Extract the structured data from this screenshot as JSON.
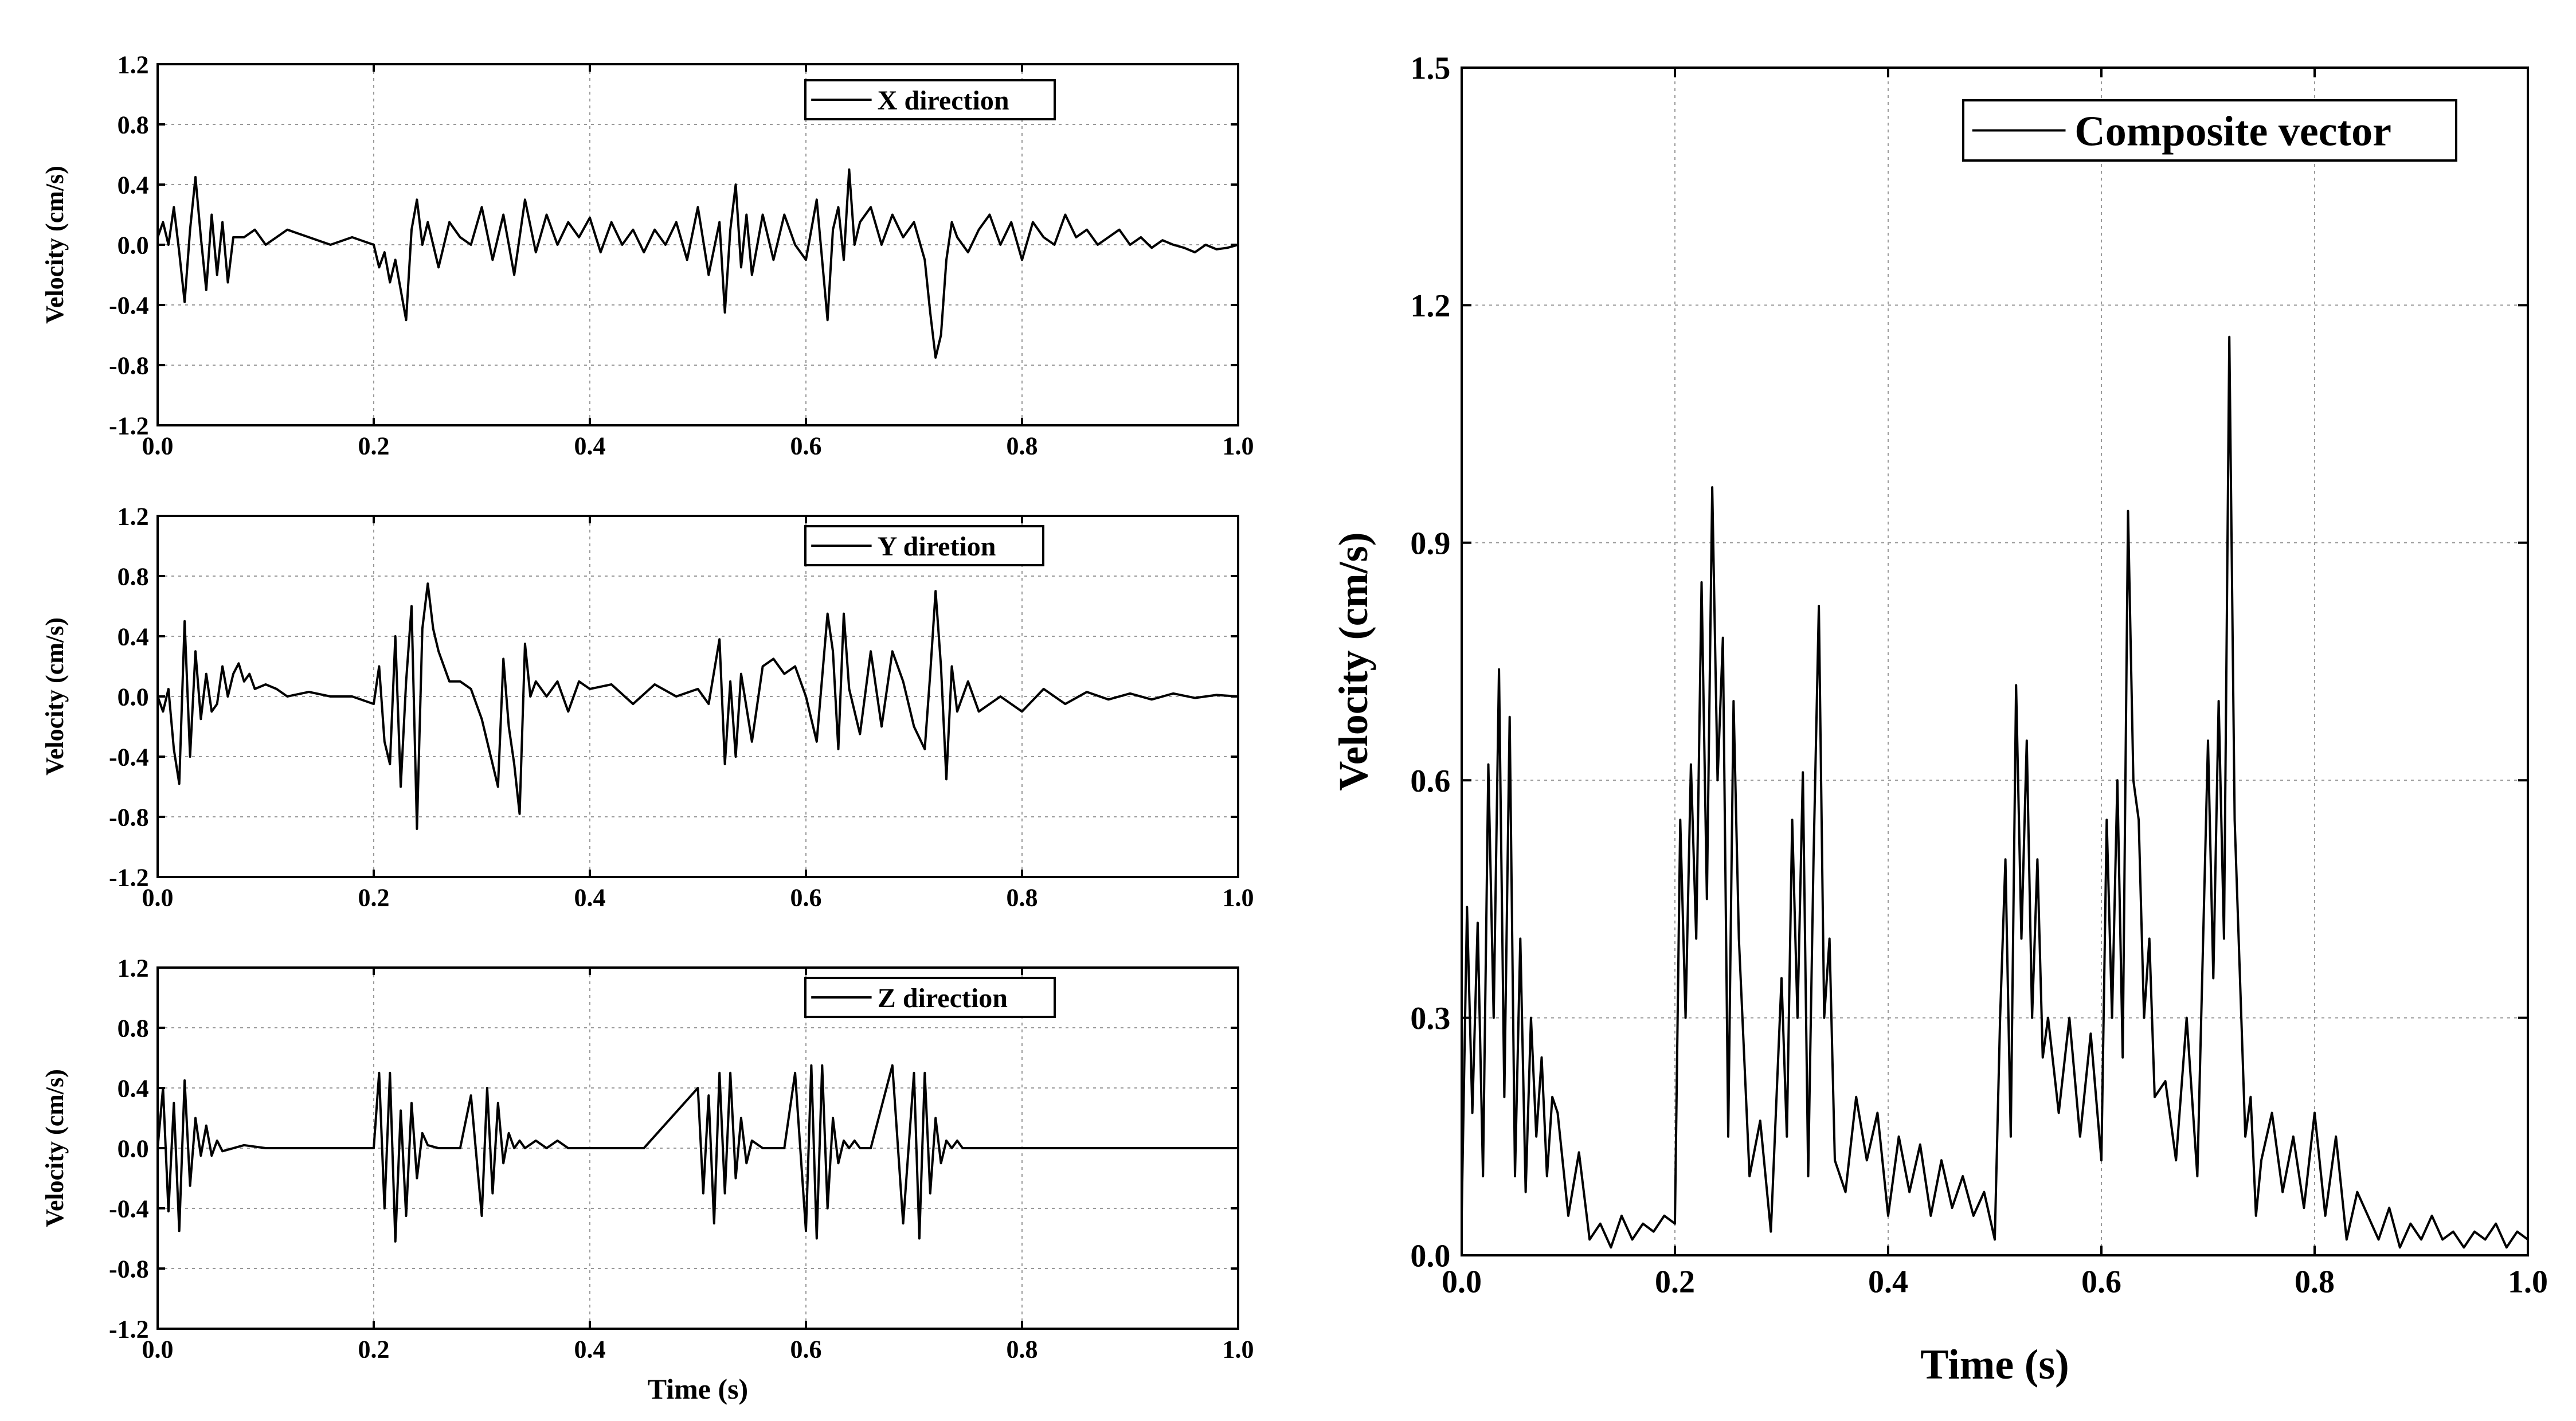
{
  "colors": {
    "line": "#000000",
    "grid": "#9a9a9a",
    "background": "#ffffff"
  },
  "chart_data": [
    {
      "type": "line",
      "id": "x",
      "legend": "X direction",
      "legend_position": "top-right",
      "xlabel": "",
      "ylabel": "Velocity (cm/s)",
      "xlim": [
        0.0,
        1.0
      ],
      "ylim": [
        -1.2,
        1.2
      ],
      "x_ticks": [
        "0.0",
        "0.2",
        "0.4",
        "0.6",
        "0.8",
        "1.0"
      ],
      "y_ticks": [
        "-1.2",
        "-0.8",
        "-0.4",
        "0.0",
        "0.4",
        "0.8",
        "1.2"
      ],
      "grid": true,
      "series": [
        {
          "name": "X direction",
          "x": [
            0.0,
            0.005,
            0.01,
            0.015,
            0.02,
            0.025,
            0.03,
            0.035,
            0.04,
            0.045,
            0.05,
            0.055,
            0.06,
            0.065,
            0.07,
            0.08,
            0.09,
            0.1,
            0.11,
            0.12,
            0.14,
            0.16,
            0.18,
            0.2,
            0.205,
            0.21,
            0.215,
            0.22,
            0.225,
            0.23,
            0.235,
            0.24,
            0.245,
            0.25,
            0.26,
            0.27,
            0.28,
            0.29,
            0.3,
            0.31,
            0.32,
            0.33,
            0.34,
            0.35,
            0.36,
            0.37,
            0.38,
            0.39,
            0.4,
            0.41,
            0.42,
            0.43,
            0.44,
            0.45,
            0.46,
            0.47,
            0.48,
            0.49,
            0.5,
            0.51,
            0.52,
            0.525,
            0.53,
            0.535,
            0.54,
            0.545,
            0.55,
            0.56,
            0.57,
            0.58,
            0.59,
            0.6,
            0.61,
            0.62,
            0.625,
            0.63,
            0.635,
            0.64,
            0.645,
            0.65,
            0.66,
            0.67,
            0.68,
            0.69,
            0.7,
            0.71,
            0.715,
            0.72,
            0.725,
            0.73,
            0.735,
            0.74,
            0.75,
            0.76,
            0.77,
            0.78,
            0.79,
            0.8,
            0.81,
            0.82,
            0.83,
            0.84,
            0.85,
            0.86,
            0.87,
            0.88,
            0.89,
            0.9,
            0.91,
            0.92,
            0.93,
            0.94,
            0.95,
            0.96,
            0.97,
            0.98,
            0.99,
            1.0
          ],
          "y": [
            0.05,
            0.15,
            0.0,
            0.25,
            -0.05,
            -0.38,
            0.1,
            0.45,
            0.05,
            -0.3,
            0.2,
            -0.2,
            0.15,
            -0.25,
            0.05,
            0.05,
            0.1,
            0.0,
            0.05,
            0.1,
            0.05,
            0.0,
            0.05,
            0.0,
            -0.15,
            -0.05,
            -0.25,
            -0.1,
            -0.3,
            -0.5,
            0.1,
            0.3,
            0.0,
            0.15,
            -0.15,
            0.15,
            0.05,
            0.0,
            0.25,
            -0.1,
            0.2,
            -0.2,
            0.3,
            -0.05,
            0.2,
            0.0,
            0.15,
            0.05,
            0.18,
            -0.05,
            0.15,
            0.0,
            0.1,
            -0.05,
            0.1,
            0.0,
            0.15,
            -0.1,
            0.25,
            -0.2,
            0.15,
            -0.45,
            0.1,
            0.4,
            -0.15,
            0.2,
            -0.2,
            0.2,
            -0.1,
            0.2,
            0.0,
            -0.1,
            0.3,
            -0.5,
            0.1,
            0.25,
            -0.1,
            0.5,
            0.0,
            0.15,
            0.25,
            0.0,
            0.2,
            0.05,
            0.15,
            -0.1,
            -0.45,
            -0.75,
            -0.6,
            -0.1,
            0.15,
            0.05,
            -0.05,
            0.1,
            0.2,
            0.0,
            0.15,
            -0.1,
            0.15,
            0.05,
            0.0,
            0.2,
            0.05,
            0.1,
            0.0,
            0.05,
            0.1,
            0.0,
            0.05,
            -0.02,
            0.03,
            0.0,
            -0.02,
            -0.05,
            0.0,
            -0.03,
            -0.02,
            0.0
          ]
        }
      ]
    },
    {
      "type": "line",
      "id": "y",
      "legend": "Y diretion",
      "legend_position": "top-right",
      "xlabel": "",
      "ylabel": "Velocity (cm/s)",
      "xlim": [
        0.0,
        1.0
      ],
      "ylim": [
        -1.2,
        1.2
      ],
      "x_ticks": [
        "0.0",
        "0.2",
        "0.4",
        "0.6",
        "0.8",
        "1.0"
      ],
      "y_ticks": [
        "-1.2",
        "-0.8",
        "-0.4",
        "0.0",
        "0.4",
        "0.8",
        "1.2"
      ],
      "grid": true,
      "series": [
        {
          "name": "Y diretion",
          "x": [
            0.0,
            0.005,
            0.01,
            0.015,
            0.02,
            0.025,
            0.03,
            0.035,
            0.04,
            0.045,
            0.05,
            0.055,
            0.06,
            0.065,
            0.07,
            0.075,
            0.08,
            0.085,
            0.09,
            0.1,
            0.11,
            0.12,
            0.14,
            0.16,
            0.18,
            0.2,
            0.205,
            0.21,
            0.215,
            0.22,
            0.225,
            0.23,
            0.235,
            0.24,
            0.245,
            0.25,
            0.255,
            0.26,
            0.27,
            0.28,
            0.29,
            0.3,
            0.31,
            0.315,
            0.32,
            0.325,
            0.33,
            0.335,
            0.34,
            0.345,
            0.35,
            0.36,
            0.37,
            0.38,
            0.39,
            0.4,
            0.42,
            0.44,
            0.46,
            0.48,
            0.5,
            0.51,
            0.52,
            0.525,
            0.53,
            0.535,
            0.54,
            0.55,
            0.56,
            0.57,
            0.58,
            0.59,
            0.6,
            0.61,
            0.62,
            0.625,
            0.63,
            0.635,
            0.64,
            0.65,
            0.66,
            0.67,
            0.68,
            0.69,
            0.7,
            0.71,
            0.715,
            0.72,
            0.725,
            0.73,
            0.735,
            0.74,
            0.75,
            0.76,
            0.77,
            0.78,
            0.8,
            0.82,
            0.84,
            0.86,
            0.88,
            0.9,
            0.92,
            0.94,
            0.96,
            0.98,
            1.0
          ],
          "y": [
            0.0,
            -0.1,
            0.05,
            -0.35,
            -0.58,
            0.5,
            -0.4,
            0.3,
            -0.15,
            0.15,
            -0.1,
            -0.05,
            0.2,
            0.0,
            0.15,
            0.22,
            0.1,
            0.15,
            0.05,
            0.08,
            0.05,
            0.0,
            0.03,
            0.0,
            0.0,
            -0.05,
            0.2,
            -0.3,
            -0.45,
            0.4,
            -0.6,
            0.1,
            0.6,
            -0.88,
            0.45,
            0.75,
            0.45,
            0.3,
            0.1,
            0.1,
            0.05,
            -0.15,
            -0.45,
            -0.6,
            0.25,
            -0.2,
            -0.45,
            -0.78,
            0.35,
            0.0,
            0.1,
            0.0,
            0.1,
            -0.1,
            0.1,
            0.05,
            0.08,
            -0.05,
            0.08,
            0.0,
            0.05,
            -0.05,
            0.38,
            -0.45,
            0.1,
            -0.4,
            0.15,
            -0.3,
            0.2,
            0.25,
            0.15,
            0.2,
            0.0,
            -0.3,
            0.55,
            0.3,
            -0.35,
            0.55,
            0.05,
            -0.25,
            0.3,
            -0.2,
            0.3,
            0.1,
            -0.2,
            -0.35,
            0.15,
            0.7,
            0.2,
            -0.55,
            0.2,
            -0.1,
            0.1,
            -0.1,
            -0.05,
            0.0,
            -0.1,
            0.05,
            -0.05,
            0.03,
            -0.02,
            0.02,
            -0.02,
            0.02,
            -0.01,
            0.01,
            0.0
          ]
        }
      ]
    },
    {
      "type": "line",
      "id": "z",
      "legend": "Z direction",
      "legend_position": "top-right",
      "xlabel": "Time (s)",
      "ylabel": "Velocity (cm/s)",
      "xlim": [
        0.0,
        1.0
      ],
      "ylim": [
        -1.2,
        1.2
      ],
      "x_ticks": [
        "0.0",
        "0.2",
        "0.4",
        "0.6",
        "0.8",
        "1.0"
      ],
      "y_ticks": [
        "-1.2",
        "-0.8",
        "-0.4",
        "0.0",
        "0.4",
        "0.8",
        "1.2"
      ],
      "grid": true,
      "series": [
        {
          "name": "Z direction",
          "x": [
            0.0,
            0.005,
            0.01,
            0.015,
            0.02,
            0.025,
            0.03,
            0.035,
            0.04,
            0.045,
            0.05,
            0.055,
            0.06,
            0.08,
            0.1,
            0.15,
            0.2,
            0.205,
            0.21,
            0.215,
            0.22,
            0.225,
            0.23,
            0.235,
            0.24,
            0.245,
            0.25,
            0.26,
            0.28,
            0.29,
            0.3,
            0.305,
            0.31,
            0.315,
            0.32,
            0.325,
            0.33,
            0.335,
            0.34,
            0.35,
            0.36,
            0.37,
            0.38,
            0.4,
            0.45,
            0.5,
            0.505,
            0.51,
            0.515,
            0.52,
            0.525,
            0.53,
            0.535,
            0.54,
            0.545,
            0.55,
            0.56,
            0.58,
            0.59,
            0.6,
            0.605,
            0.61,
            0.615,
            0.62,
            0.625,
            0.63,
            0.635,
            0.64,
            0.645,
            0.65,
            0.66,
            0.68,
            0.69,
            0.7,
            0.705,
            0.71,
            0.715,
            0.72,
            0.725,
            0.73,
            0.735,
            0.74,
            0.745,
            0.75,
            0.76,
            0.78,
            0.8,
            0.85,
            0.9,
            0.95,
            1.0
          ],
          "y": [
            0.0,
            0.4,
            -0.42,
            0.3,
            -0.55,
            0.45,
            -0.25,
            0.2,
            -0.05,
            0.15,
            -0.05,
            0.05,
            -0.02,
            0.02,
            0.0,
            0.0,
            0.0,
            0.5,
            -0.4,
            0.5,
            -0.62,
            0.25,
            -0.45,
            0.3,
            -0.2,
            0.1,
            0.02,
            0.0,
            0.0,
            0.35,
            -0.45,
            0.4,
            -0.3,
            0.3,
            -0.1,
            0.1,
            0.0,
            0.05,
            0.0,
            0.05,
            0.0,
            0.05,
            0.0,
            0.0,
            0.0,
            0.4,
            -0.3,
            0.35,
            -0.5,
            0.5,
            -0.3,
            0.5,
            -0.2,
            0.2,
            -0.1,
            0.05,
            0.0,
            0.0,
            0.5,
            -0.55,
            0.55,
            -0.6,
            0.55,
            -0.4,
            0.2,
            -0.1,
            0.05,
            0.0,
            0.05,
            0.0,
            0.0,
            0.55,
            -0.5,
            0.5,
            -0.6,
            0.5,
            -0.3,
            0.2,
            -0.1,
            0.05,
            0.0,
            0.05,
            0.0,
            0.0,
            0.0,
            0.0,
            0.0,
            0.0,
            0.0,
            0.0,
            0.0
          ]
        }
      ]
    },
    {
      "type": "line",
      "id": "composite",
      "legend": "Composite vector",
      "legend_position": "top-right",
      "xlabel": "Time (s)",
      "ylabel": "Velocity (cm/s)",
      "xlim": [
        0.0,
        1.0
      ],
      "ylim": [
        0.0,
        1.5
      ],
      "x_ticks": [
        "0.0",
        "0.2",
        "0.4",
        "0.6",
        "0.8",
        "1.0"
      ],
      "y_ticks": [
        "0.0",
        "0.3",
        "0.6",
        "0.9",
        "1.2",
        "1.5"
      ],
      "grid": true,
      "series": [
        {
          "name": "Composite vector",
          "x": [
            0.0,
            0.005,
            0.01,
            0.015,
            0.02,
            0.025,
            0.03,
            0.035,
            0.04,
            0.045,
            0.05,
            0.055,
            0.06,
            0.065,
            0.07,
            0.075,
            0.08,
            0.085,
            0.09,
            0.1,
            0.11,
            0.12,
            0.13,
            0.14,
            0.15,
            0.16,
            0.17,
            0.18,
            0.19,
            0.2,
            0.205,
            0.21,
            0.215,
            0.22,
            0.225,
            0.23,
            0.235,
            0.24,
            0.245,
            0.25,
            0.255,
            0.26,
            0.27,
            0.28,
            0.29,
            0.3,
            0.305,
            0.31,
            0.315,
            0.32,
            0.325,
            0.33,
            0.335,
            0.34,
            0.345,
            0.35,
            0.36,
            0.37,
            0.38,
            0.39,
            0.4,
            0.41,
            0.42,
            0.43,
            0.44,
            0.45,
            0.46,
            0.47,
            0.48,
            0.49,
            0.5,
            0.505,
            0.51,
            0.515,
            0.52,
            0.525,
            0.53,
            0.535,
            0.54,
            0.545,
            0.55,
            0.56,
            0.57,
            0.58,
            0.59,
            0.6,
            0.605,
            0.61,
            0.615,
            0.62,
            0.625,
            0.63,
            0.635,
            0.64,
            0.645,
            0.65,
            0.66,
            0.67,
            0.68,
            0.69,
            0.7,
            0.705,
            0.71,
            0.715,
            0.72,
            0.725,
            0.73,
            0.735,
            0.74,
            0.745,
            0.75,
            0.76,
            0.77,
            0.78,
            0.79,
            0.8,
            0.81,
            0.82,
            0.83,
            0.84,
            0.85,
            0.86,
            0.87,
            0.88,
            0.89,
            0.9,
            0.91,
            0.92,
            0.93,
            0.94,
            0.95,
            0.96,
            0.97,
            0.98,
            0.99,
            1.0
          ],
          "y": [
            0.05,
            0.44,
            0.18,
            0.42,
            0.1,
            0.62,
            0.3,
            0.74,
            0.2,
            0.68,
            0.1,
            0.4,
            0.08,
            0.3,
            0.15,
            0.25,
            0.1,
            0.2,
            0.18,
            0.05,
            0.13,
            0.02,
            0.04,
            0.01,
            0.05,
            0.02,
            0.04,
            0.03,
            0.05,
            0.04,
            0.55,
            0.3,
            0.62,
            0.4,
            0.85,
            0.45,
            0.97,
            0.6,
            0.78,
            0.15,
            0.7,
            0.4,
            0.1,
            0.17,
            0.03,
            0.35,
            0.15,
            0.55,
            0.3,
            0.61,
            0.1,
            0.5,
            0.82,
            0.3,
            0.4,
            0.12,
            0.08,
            0.2,
            0.12,
            0.18,
            0.05,
            0.15,
            0.08,
            0.14,
            0.05,
            0.12,
            0.06,
            0.1,
            0.05,
            0.08,
            0.02,
            0.3,
            0.5,
            0.15,
            0.72,
            0.4,
            0.65,
            0.3,
            0.5,
            0.25,
            0.3,
            0.18,
            0.3,
            0.15,
            0.28,
            0.12,
            0.55,
            0.3,
            0.6,
            0.25,
            0.94,
            0.6,
            0.55,
            0.3,
            0.4,
            0.2,
            0.22,
            0.12,
            0.3,
            0.1,
            0.65,
            0.35,
            0.7,
            0.4,
            1.16,
            0.55,
            0.35,
            0.15,
            0.2,
            0.05,
            0.12,
            0.18,
            0.08,
            0.15,
            0.06,
            0.18,
            0.05,
            0.15,
            0.02,
            0.08,
            0.05,
            0.02,
            0.06,
            0.01,
            0.04,
            0.02,
            0.05,
            0.02,
            0.03,
            0.01,
            0.03,
            0.02,
            0.04,
            0.01,
            0.03,
            0.02
          ]
        }
      ]
    }
  ]
}
